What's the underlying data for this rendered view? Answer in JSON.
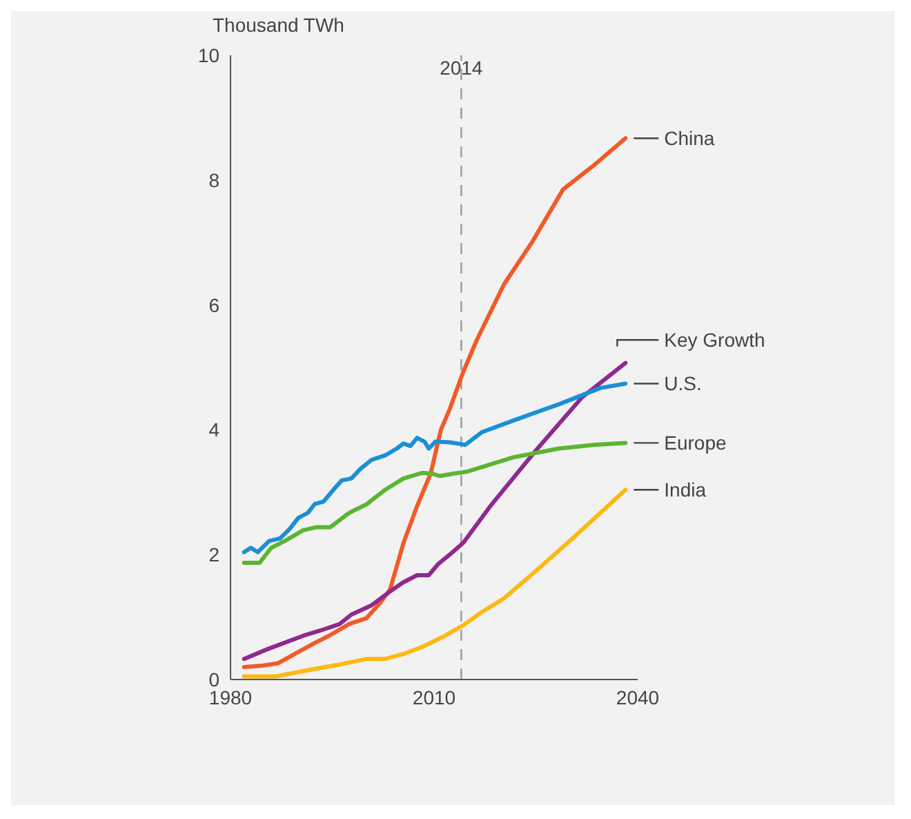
{
  "chart_data": {
    "type": "line",
    "ylabel": "Thousand TWh",
    "xlim": [
      1980,
      2040
    ],
    "xticks": [
      1980,
      2010,
      2040
    ],
    "ylim": [
      0,
      10
    ],
    "yticks": [
      0,
      2,
      4,
      6,
      8,
      10
    ],
    "grid": false,
    "marker": "none",
    "line_style": "solid",
    "ref_lines": [
      {
        "axis": "x",
        "value": 2014,
        "label": "2014",
        "color": "#999999",
        "line_style": "dashed"
      }
    ],
    "series": [
      {
        "name": "China",
        "color": "#f15a29",
        "x": [
          1982,
          1984.5,
          1987,
          1990,
          1992.5,
          1994.5,
          1997.5,
          2000,
          2002,
          2003.5,
          2005.5,
          2007.5,
          2009.5,
          2011,
          2012.3,
          2014.3,
          2016.3,
          2020.3,
          2024.4,
          2029,
          2033.8,
          2038.2
        ],
        "values": [
          0.2,
          0.22,
          0.26,
          0.44,
          0.59,
          0.7,
          0.89,
          0.98,
          1.22,
          1.44,
          2.19,
          2.78,
          3.3,
          4.0,
          4.33,
          4.93,
          5.44,
          6.33,
          7.0,
          7.85,
          8.26,
          8.67
        ]
      },
      {
        "name": "Key Growth",
        "color": "#8e2a8e",
        "x": [
          1982,
          1985.3,
          1988,
          1990.7,
          1993.1,
          1996.1,
          1997.8,
          2000.8,
          2003.5,
          2005.5,
          2007.5,
          2009.2,
          2010.6,
          2012.3,
          2014.3,
          2018.3,
          2025,
          2031.8,
          2038.2
        ],
        "values": [
          0.33,
          0.48,
          0.59,
          0.7,
          0.78,
          0.89,
          1.04,
          1.19,
          1.41,
          1.56,
          1.67,
          1.67,
          1.85,
          2.0,
          2.19,
          2.78,
          3.67,
          4.52,
          5.07
        ]
      },
      {
        "name": "U.S.",
        "color": "#1b8fd6",
        "x": [
          1982,
          1983,
          1984,
          1985.7,
          1987.3,
          1988.7,
          1990,
          1991.4,
          1992.4,
          1993.7,
          1995.4,
          1996.4,
          1997.8,
          1999.1,
          2000.8,
          2002.8,
          2004.5,
          2005.5,
          2006.5,
          2007.5,
          2008.6,
          2009.2,
          2010.2,
          2012.3,
          2014.6,
          2017,
          2021.7,
          2028.4,
          2034.5,
          2038.2
        ],
        "values": [
          2.04,
          2.11,
          2.04,
          2.22,
          2.26,
          2.41,
          2.59,
          2.67,
          2.81,
          2.85,
          3.07,
          3.19,
          3.22,
          3.37,
          3.52,
          3.59,
          3.7,
          3.78,
          3.74,
          3.87,
          3.81,
          3.7,
          3.81,
          3.8,
          3.76,
          3.96,
          4.15,
          4.41,
          4.67,
          4.74
        ]
      },
      {
        "name": "Europe",
        "color": "#5cb531",
        "x": [
          1982,
          1984.3,
          1986,
          1988,
          1990.7,
          1992.7,
          1994.7,
          1997.5,
          2000.1,
          2002.8,
          2005.5,
          2008.2,
          2009.6,
          2010.9,
          2012.9,
          2014.9,
          2021.7,
          2028.4,
          2033.8,
          2038.2
        ],
        "values": [
          1.87,
          1.87,
          2.11,
          2.22,
          2.39,
          2.44,
          2.44,
          2.67,
          2.81,
          3.04,
          3.22,
          3.31,
          3.3,
          3.26,
          3.3,
          3.33,
          3.56,
          3.7,
          3.76,
          3.79
        ]
      },
      {
        "name": "India",
        "color": "#fdb813",
        "x": [
          1982,
          1986.7,
          1991.4,
          1996.1,
          2000.1,
          2002.8,
          2005.5,
          2008.2,
          2011.6,
          2014.3,
          2016.9,
          2020.3,
          2025,
          2030.4,
          2038.2
        ],
        "values": [
          0.05,
          0.05,
          0.15,
          0.24,
          0.33,
          0.33,
          0.41,
          0.52,
          0.7,
          0.87,
          1.07,
          1.3,
          1.74,
          2.26,
          3.04
        ]
      }
    ]
  }
}
